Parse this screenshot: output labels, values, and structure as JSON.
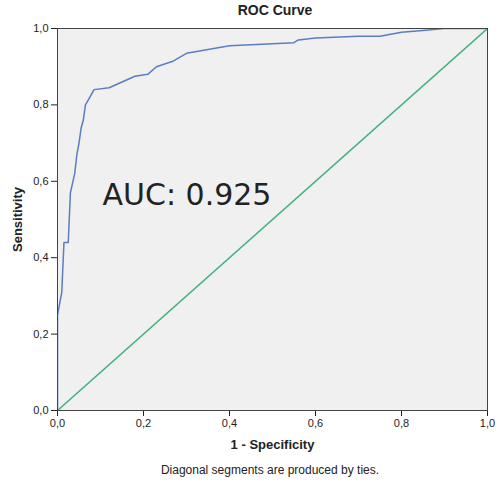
{
  "chart_data": {
    "type": "line",
    "title": "ROC Curve",
    "x_label": "1 - Specificity",
    "y_label": "Sensitivity",
    "annotations": [
      "AUC: 0.925"
    ],
    "caption": "Diagonal segments are produced by ties.",
    "xlim": [
      0,
      1
    ],
    "ylim": [
      0,
      1
    ],
    "xticks": [
      {
        "value": 0,
        "label": "0,0"
      },
      {
        "value": 0.2,
        "label": "0,2"
      },
      {
        "value": 0.4,
        "label": "0,4"
      },
      {
        "value": 0.6,
        "label": "0,6"
      },
      {
        "value": 0.8,
        "label": "0,8"
      },
      {
        "value": 1,
        "label": "1,0"
      }
    ],
    "yticks": [
      {
        "value": 0,
        "label": "0,0"
      },
      {
        "value": 0.2,
        "label": "0,2"
      },
      {
        "value": 0.4,
        "label": "0,4"
      },
      {
        "value": 0.6,
        "label": "0,6"
      },
      {
        "value": 0.8,
        "label": "0,8"
      },
      {
        "value": 1,
        "label": "1,0"
      }
    ],
    "grid": false,
    "series": [
      {
        "color": "#5a7ec4",
        "x": [
          0,
          0,
          0.01,
          0.015,
          0.025,
          0.03,
          0.04,
          0.045,
          0.05,
          0.055,
          0.06,
          0.065,
          0.075,
          0.085,
          0.12,
          0.15,
          0.18,
          0.21,
          0.23,
          0.27,
          0.3,
          0.35,
          0.4,
          0.5,
          0.55,
          0.56,
          0.6,
          0.7,
          0.75,
          0.8,
          0.85,
          0.9,
          1
        ],
        "values": [
          0,
          0.25,
          0.31,
          0.44,
          0.44,
          0.57,
          0.62,
          0.67,
          0.7,
          0.74,
          0.76,
          0.8,
          0.82,
          0.84,
          0.845,
          0.86,
          0.875,
          0.88,
          0.9,
          0.915,
          0.935,
          0.945,
          0.955,
          0.96,
          0.963,
          0.97,
          0.975,
          0.98,
          0.98,
          0.99,
          0.995,
          1,
          1
        ]
      },
      {
        "color": "#3fb37f",
        "x": [
          0,
          1
        ],
        "values": [
          0,
          1
        ]
      }
    ]
  }
}
